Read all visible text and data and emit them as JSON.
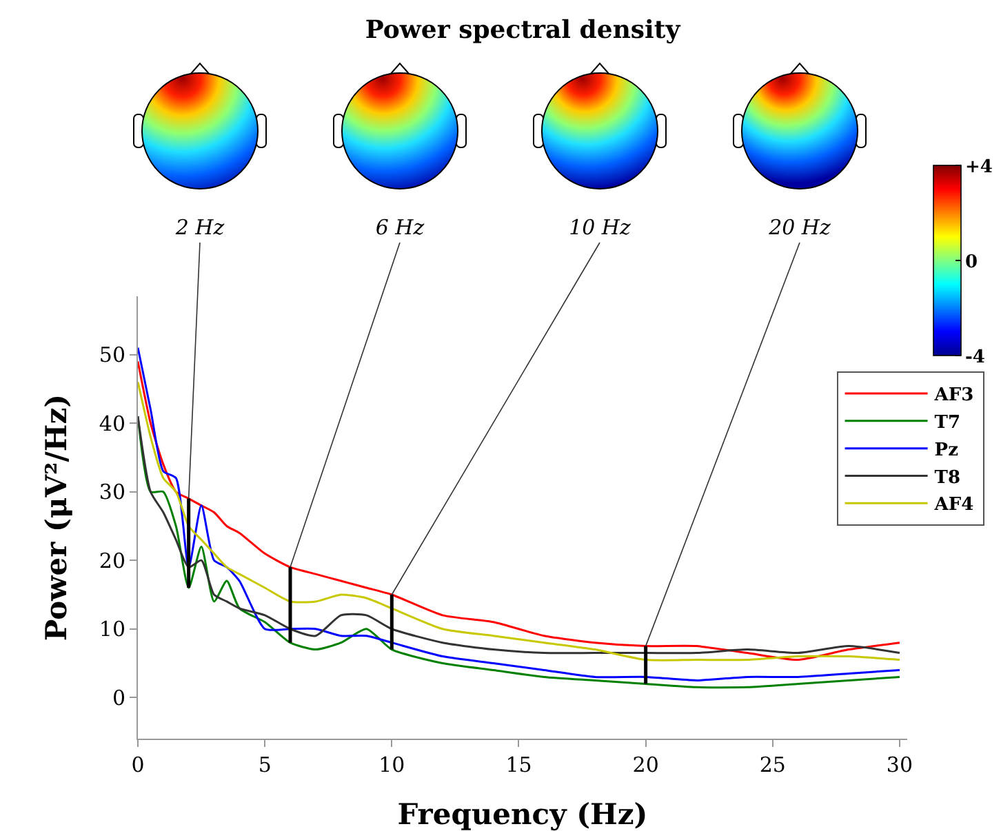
{
  "chart_data": {
    "type": "line",
    "title": "Power spectral density",
    "xlabel": "Frequency (Hz)",
    "ylabel": "Power (μV²/Hz)",
    "x": [
      0,
      0.5,
      1,
      1.5,
      2,
      2.5,
      3,
      3.5,
      4,
      5,
      6,
      7,
      8,
      9,
      10,
      12,
      14,
      16,
      18,
      20,
      22,
      24,
      26,
      28,
      30
    ],
    "series": [
      {
        "name": "AF3",
        "color": "#ff0000",
        "values": [
          49,
          40,
          34,
          30,
          29,
          28,
          27,
          25,
          24,
          21,
          19,
          18,
          17,
          16,
          15,
          12,
          11,
          9,
          8,
          7.5,
          7.5,
          6.5,
          5.5,
          7,
          8
        ]
      },
      {
        "name": "T7",
        "color": "#008000",
        "values": [
          41,
          30,
          30,
          25,
          16,
          22,
          14,
          17,
          13,
          11,
          8,
          7,
          8,
          10,
          7,
          5,
          4,
          3,
          2.5,
          2,
          1.5,
          1.5,
          2,
          2.5,
          3
        ]
      },
      {
        "name": "Pz",
        "color": "#0000ff",
        "values": [
          51,
          42,
          33,
          32,
          19,
          28,
          20,
          19,
          17,
          10,
          10,
          10,
          9,
          9,
          8,
          6,
          5,
          4,
          3,
          3,
          2.5,
          3,
          3,
          3.5,
          4
        ]
      },
      {
        "name": "T8",
        "color": "#333333",
        "values": [
          41,
          30,
          27,
          23,
          19,
          20,
          15,
          14,
          13,
          12,
          10,
          9,
          12,
          12,
          10,
          8,
          7,
          6.5,
          6.5,
          6.5,
          6.5,
          7,
          6.5,
          7.5,
          6.5
        ]
      },
      {
        "name": "AF4",
        "color": "#c8c800",
        "values": [
          46,
          38,
          32,
          30,
          25,
          23,
          21,
          19,
          18,
          16,
          14,
          14,
          15,
          14.5,
          13,
          10,
          9,
          8,
          7,
          5.5,
          5.5,
          5.5,
          6,
          6,
          5.5
        ]
      }
    ],
    "xlim": [
      0,
      30.3
    ],
    "xticks": [
      0,
      5,
      10,
      15,
      20,
      25,
      30
    ],
    "ylim": [
      -6,
      58.5
    ],
    "yticks": [
      0,
      10,
      20,
      30,
      40,
      50
    ],
    "grid": false,
    "legend": "top right",
    "marker": "none",
    "line_style": "solid",
    "annotations": [
      {
        "text": "2 Hz",
        "x": 2,
        "y": 29
      },
      {
        "text": "6 Hz",
        "x": 6,
        "y": 19
      },
      {
        "text": "10 Hz",
        "x": 10,
        "y": 15
      },
      {
        "text": "20 Hz",
        "x": 20,
        "y": 7.5
      }
    ],
    "clim": [
      -4,
      4
    ],
    "cticks": [
      {
        "value": 4,
        "label": "+4"
      },
      0,
      {
        "value": -4,
        "label": "-4"
      }
    ]
  }
}
